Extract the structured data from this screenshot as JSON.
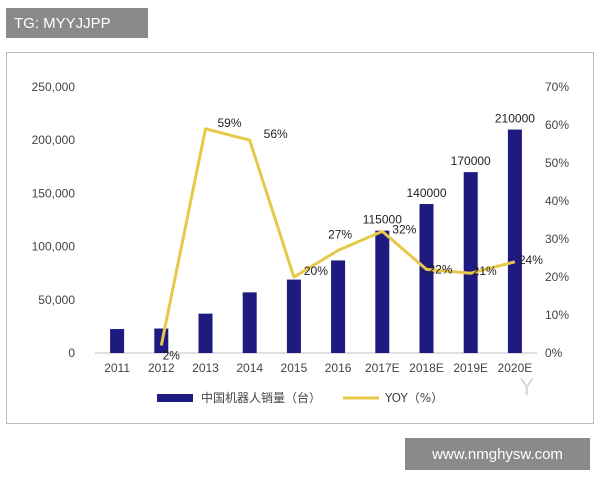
{
  "header_tag": "TG: MYYJJPP",
  "footer_tag": "www.nmghysw.com",
  "watermark": "Y",
  "colors": {
    "bar": "#1f1a80",
    "line": "#e7c94a",
    "axis_text": "#444444",
    "tag_bg": "#8a8a8a"
  },
  "chart_data": {
    "type": "bar",
    "title": "",
    "categories": [
      "2011",
      "2012",
      "2013",
      "2014",
      "2015",
      "2016",
      "2017E",
      "2018E",
      "2019E",
      "2020E"
    ],
    "series": [
      {
        "name": "中国机器人销量（台）",
        "type": "bar",
        "axis": "left",
        "values": [
          22500,
          23000,
          37000,
          57000,
          69000,
          87000,
          115000,
          140000,
          170000,
          210000
        ],
        "data_labels": [
          "",
          "",
          "",
          "",
          "",
          "",
          "115000",
          "140000",
          "170000",
          "210000"
        ]
      },
      {
        "name": "YOY（%）",
        "type": "line",
        "axis": "right",
        "values": [
          null,
          2,
          59,
          56,
          20,
          27,
          32,
          22,
          21,
          24
        ],
        "data_labels": [
          "",
          "2%",
          "59%",
          "56%",
          "20%",
          "27%",
          "32%",
          "22%",
          "21%",
          "24%"
        ]
      }
    ],
    "y_left": {
      "ylim": [
        0,
        250000
      ],
      "ticks": [
        "0",
        "50,000",
        "100,000",
        "150,000",
        "200,000",
        "250,000"
      ]
    },
    "y_right": {
      "ylim": [
        0,
        70
      ],
      "ticks": [
        "0%",
        "10%",
        "20%",
        "30%",
        "40%",
        "50%",
        "60%",
        "70%"
      ]
    },
    "grid": false,
    "legend": "bottom"
  }
}
